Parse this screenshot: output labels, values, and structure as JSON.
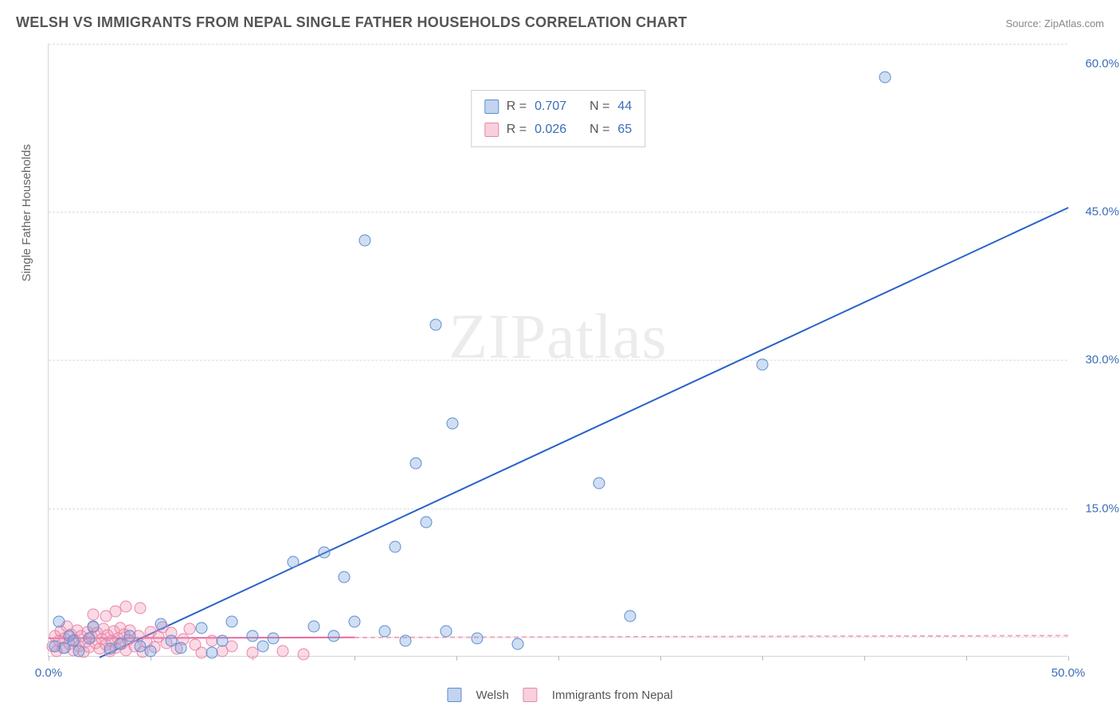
{
  "header": {
    "title": "WELSH VS IMMIGRANTS FROM NEPAL SINGLE FATHER HOUSEHOLDS CORRELATION CHART",
    "source": "Source: ZipAtlas.com"
  },
  "watermark": "ZIPatlas",
  "chart": {
    "type": "scatter",
    "y_axis_label": "Single Father Households",
    "background_color": "#ffffff",
    "grid_color": "#dcdcdc",
    "axis_color": "#d5d5d5",
    "tick_label_color": "#3b6db8",
    "label_fontsize": 15,
    "title_fontsize": 18,
    "marker_radius": 7.5,
    "xlim": [
      0,
      50
    ],
    "ylim": [
      0,
      62
    ],
    "xticks": [
      0,
      5,
      10,
      15,
      20,
      25,
      30,
      35,
      40,
      45,
      50
    ],
    "xtick_labels": {
      "0": "0.0%",
      "50": "50.0%"
    },
    "yticks": [
      15,
      30,
      45,
      60
    ],
    "ytick_labels": {
      "15": "15.0%",
      "30": "30.0%",
      "45": "45.0%",
      "60": "60.0%"
    },
    "yticks_grid": [
      2,
      15,
      30,
      45,
      62
    ],
    "legend_top": [
      {
        "swatch": "blue",
        "r_label": "R =",
        "r": "0.707",
        "n_label": "N =",
        "n": "44"
      },
      {
        "swatch": "pink",
        "r_label": "R =",
        "r": "0.026",
        "n_label": "N =",
        "n": "65"
      }
    ],
    "legend_bottom": [
      {
        "swatch": "blue",
        "label": "Welsh"
      },
      {
        "swatch": "pink",
        "label": "Immigrants from Nepal"
      }
    ],
    "series": {
      "welsh": {
        "color_fill": "rgba(120,160,220,0.35)",
        "color_stroke": "#5a8ed0",
        "trend_color": "#2a62c8",
        "trend_width": 2,
        "trend": {
          "x1": 2.5,
          "y1": 0,
          "x2": 50,
          "y2": 45.5
        },
        "points": [
          [
            0.3,
            1.0
          ],
          [
            0.5,
            3.5
          ],
          [
            0.8,
            0.8
          ],
          [
            1.0,
            2.0
          ],
          [
            1.2,
            1.5
          ],
          [
            1.5,
            0.5
          ],
          [
            2.0,
            1.8
          ],
          [
            2.2,
            3.0
          ],
          [
            3.0,
            0.7
          ],
          [
            3.5,
            1.2
          ],
          [
            4.0,
            2.0
          ],
          [
            4.5,
            1.0
          ],
          [
            5.5,
            3.2
          ],
          [
            6.0,
            1.5
          ],
          [
            6.5,
            0.8
          ],
          [
            7.5,
            2.8
          ],
          [
            8.5,
            1.5
          ],
          [
            9.0,
            3.5
          ],
          [
            10.0,
            2.0
          ],
          [
            10.5,
            1.0
          ],
          [
            12.0,
            9.5
          ],
          [
            13.0,
            3.0
          ],
          [
            13.5,
            10.5
          ],
          [
            14.0,
            2.0
          ],
          [
            14.5,
            8.0
          ],
          [
            15.0,
            3.5
          ],
          [
            15.5,
            42.0
          ],
          [
            16.5,
            2.5
          ],
          [
            17.0,
            11.0
          ],
          [
            17.5,
            1.5
          ],
          [
            18.0,
            19.5
          ],
          [
            18.5,
            13.5
          ],
          [
            19.0,
            33.5
          ],
          [
            19.5,
            2.5
          ],
          [
            19.8,
            23.5
          ],
          [
            21.0,
            1.8
          ],
          [
            23.0,
            1.2
          ],
          [
            27.0,
            17.5
          ],
          [
            28.5,
            4.0
          ],
          [
            35.0,
            29.5
          ],
          [
            41.0,
            58.5
          ],
          [
            5.0,
            0.5
          ],
          [
            8.0,
            0.3
          ],
          [
            11.0,
            1.8
          ]
        ]
      },
      "nepal": {
        "color_fill": "rgba(240,150,180,0.35)",
        "color_stroke": "#e885aa",
        "trend_color_solid": "#e86ba0",
        "trend_color_dash": "#f0a8c0",
        "trend_width": 2,
        "trend_solid": {
          "x1": 0,
          "y1": 1.9,
          "x2": 15,
          "y2": 2.0
        },
        "trend_dash": {
          "x1": 15,
          "y1": 2.0,
          "x2": 50,
          "y2": 2.2
        },
        "points": [
          [
            0.2,
            1.0
          ],
          [
            0.3,
            2.0
          ],
          [
            0.4,
            0.5
          ],
          [
            0.5,
            1.5
          ],
          [
            0.6,
            2.5
          ],
          [
            0.7,
            0.8
          ],
          [
            0.8,
            1.8
          ],
          [
            0.9,
            3.0
          ],
          [
            1.0,
            1.2
          ],
          [
            1.1,
            2.2
          ],
          [
            1.2,
            0.6
          ],
          [
            1.3,
            1.6
          ],
          [
            1.4,
            2.6
          ],
          [
            1.5,
            1.0
          ],
          [
            1.6,
            2.0
          ],
          [
            1.7,
            0.4
          ],
          [
            1.8,
            1.4
          ],
          [
            1.9,
            2.4
          ],
          [
            2.0,
            0.9
          ],
          [
            2.1,
            1.9
          ],
          [
            2.2,
            2.9
          ],
          [
            2.3,
            1.3
          ],
          [
            2.4,
            2.3
          ],
          [
            2.5,
            0.7
          ],
          [
            2.6,
            1.7
          ],
          [
            2.7,
            2.7
          ],
          [
            2.8,
            1.1
          ],
          [
            2.9,
            2.1
          ],
          [
            3.0,
            0.5
          ],
          [
            3.1,
            1.5
          ],
          [
            3.2,
            2.5
          ],
          [
            3.3,
            0.8
          ],
          [
            3.4,
            1.8
          ],
          [
            3.5,
            2.8
          ],
          [
            3.6,
            1.2
          ],
          [
            3.7,
            2.2
          ],
          [
            3.8,
            0.6
          ],
          [
            3.9,
            1.6
          ],
          [
            4.0,
            2.6
          ],
          [
            4.2,
            1.0
          ],
          [
            4.4,
            2.0
          ],
          [
            4.6,
            0.4
          ],
          [
            4.8,
            1.4
          ],
          [
            5.0,
            2.4
          ],
          [
            5.2,
            0.9
          ],
          [
            5.4,
            1.9
          ],
          [
            5.6,
            2.9
          ],
          [
            5.8,
            1.3
          ],
          [
            6.0,
            2.3
          ],
          [
            6.3,
            0.7
          ],
          [
            6.6,
            1.7
          ],
          [
            6.9,
            2.7
          ],
          [
            7.2,
            1.1
          ],
          [
            7.5,
            0.3
          ],
          [
            8.0,
            1.5
          ],
          [
            8.5,
            0.5
          ],
          [
            9.0,
            1.0
          ],
          [
            3.3,
            4.5
          ],
          [
            3.8,
            5.0
          ],
          [
            2.2,
            4.2
          ],
          [
            4.5,
            4.8
          ],
          [
            2.8,
            4.0
          ],
          [
            10.0,
            0.3
          ],
          [
            11.5,
            0.5
          ],
          [
            12.5,
            0.2
          ]
        ]
      }
    }
  }
}
